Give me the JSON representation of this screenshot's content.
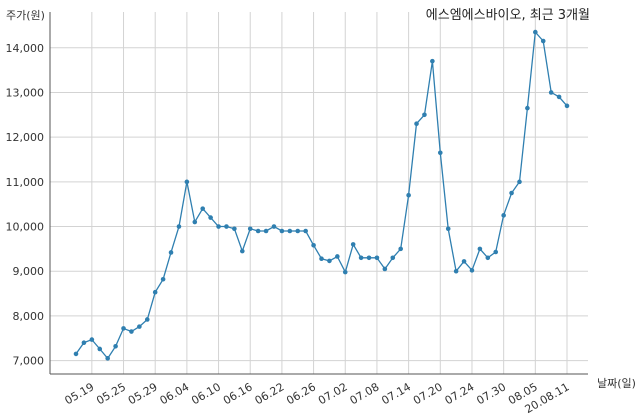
{
  "chart_data": {
    "type": "line",
    "title": "에스엠에스바이오, 최근 3개월",
    "ylabel": "주가(원)",
    "xlabel": "날짜(일)",
    "ylim": [
      6700,
      14800
    ],
    "yticks": [
      7000,
      8000,
      9000,
      10000,
      11000,
      12000,
      13000,
      14000
    ],
    "ytick_labels": [
      "7,000",
      "8,000",
      "9,000",
      "10,000",
      "11,000",
      "12,000",
      "13,000",
      "14,000"
    ],
    "xtick_labels": [
      "05.19",
      "05.25",
      "05.29",
      "06.04",
      "06.10",
      "06.16",
      "06.22",
      "06.26",
      "07.02",
      "07.08",
      "07.14",
      "07.20",
      "07.24",
      "07.30",
      "08.05",
      "20.08.11"
    ],
    "xtick_indices": [
      2,
      6,
      10,
      14,
      18,
      22,
      26,
      30,
      34,
      38,
      42,
      46,
      50,
      54,
      58,
      62
    ],
    "grid": true,
    "color": "#2f7fb0",
    "series": [
      {
        "values": [
          7150,
          7400,
          7470,
          7260,
          7050,
          7320,
          7720,
          7650,
          7760,
          7920,
          8530,
          8820,
          9420,
          10000,
          11000,
          10100,
          10400,
          10200,
          10000,
          10000,
          9950,
          9450,
          9950,
          9900,
          9900,
          10000,
          9900,
          9900,
          9900,
          9900,
          9580,
          9280,
          9230,
          9330,
          8980,
          9600,
          9300,
          9300,
          9300,
          9050,
          9300,
          9500,
          10700,
          12300,
          12500,
          13700,
          11650,
          9950,
          9000,
          9220,
          9020,
          9500,
          9300,
          9430,
          10250,
          10750,
          11000,
          12650,
          14350,
          14150,
          13000,
          12900,
          12700
        ]
      }
    ]
  }
}
